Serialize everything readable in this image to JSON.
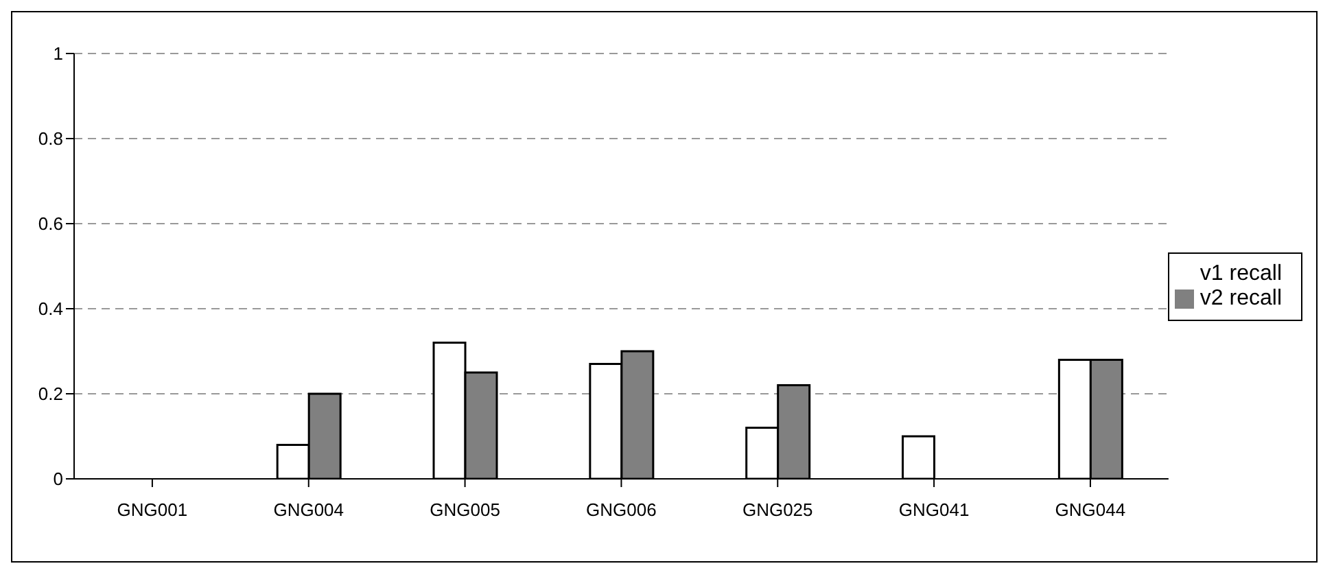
{
  "chart_data": {
    "type": "bar",
    "categories": [
      "GNG001",
      "GNG004",
      "GNG005",
      "GNG006",
      "GNG025",
      "GNG041",
      "GNG044"
    ],
    "series": [
      {
        "name": "v1 recall",
        "color": "#ffffff",
        "values": [
          0,
          0.08,
          0.32,
          0.27,
          0.12,
          0.1,
          0.28
        ]
      },
      {
        "name": "v2 recall",
        "color": "#808080",
        "values": [
          0,
          0.2,
          0.25,
          0.3,
          0.22,
          0,
          0.28
        ]
      }
    ],
    "ylim": [
      0,
      1
    ],
    "yticks": [
      0,
      0.2,
      0.4,
      0.6,
      0.8,
      1
    ],
    "grid": "y",
    "legend": "right"
  }
}
